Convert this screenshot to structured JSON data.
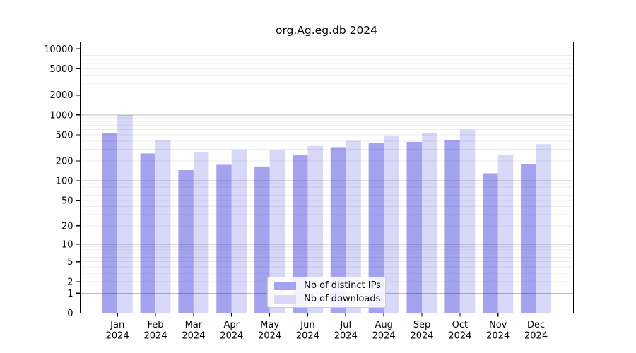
{
  "chart_data": {
    "type": "bar",
    "title": "org.Ag.eg.db 2024",
    "categories": [
      "Jan",
      "Feb",
      "Mar",
      "Apr",
      "May",
      "Jun",
      "Jul",
      "Aug",
      "Sep",
      "Oct",
      "Nov",
      "Dec"
    ],
    "category_year": "2024",
    "series": [
      {
        "name": "Nb of distinct IPs",
        "key": "distinct-ips",
        "color": "#a3a3f0",
        "values": [
          525,
          260,
          145,
          175,
          165,
          245,
          325,
          375,
          390,
          410,
          130,
          180
        ]
      },
      {
        "name": "Nb of downloads",
        "key": "downloads",
        "color": "#d8d8f8",
        "values": [
          1000,
          420,
          270,
          300,
          295,
          340,
          405,
          490,
          525,
          600,
          245,
          360
        ]
      }
    ],
    "yscale": "log1p",
    "yticks": [
      10000,
      5000,
      2000,
      1000,
      500,
      200,
      100,
      50,
      20,
      10,
      5,
      2,
      1,
      0
    ],
    "ylim": [
      0,
      12800
    ],
    "xlabel": "",
    "ylabel": "",
    "grid": true,
    "legend_position": "bottom-center"
  }
}
